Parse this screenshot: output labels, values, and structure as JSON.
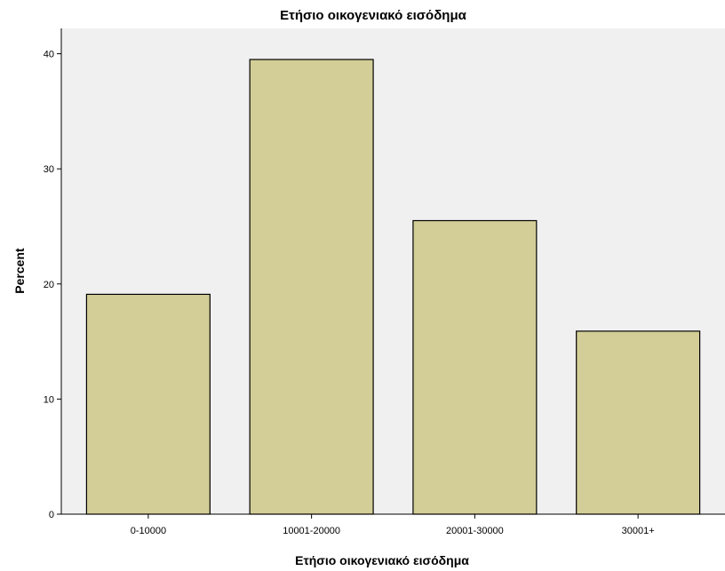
{
  "chart_data": {
    "type": "bar",
    "title": "Ετήσιο οικογενιακό εισόδημα",
    "xlabel": "Ετήσιο οικογενιακό εισόδημα",
    "ylabel": "Percent",
    "categories": [
      "0-10000",
      "10001-20000",
      "20001-30000",
      "30001+"
    ],
    "values": [
      19.1,
      39.5,
      25.5,
      15.9
    ],
    "ylim": [
      0,
      42.2
    ],
    "yticks": [
      0,
      10,
      20,
      30,
      40
    ],
    "grid": false,
    "colors": {
      "bar_fill": "#d3ce97",
      "bar_stroke": "#000000",
      "plot_background": "#f0f0f0"
    }
  }
}
